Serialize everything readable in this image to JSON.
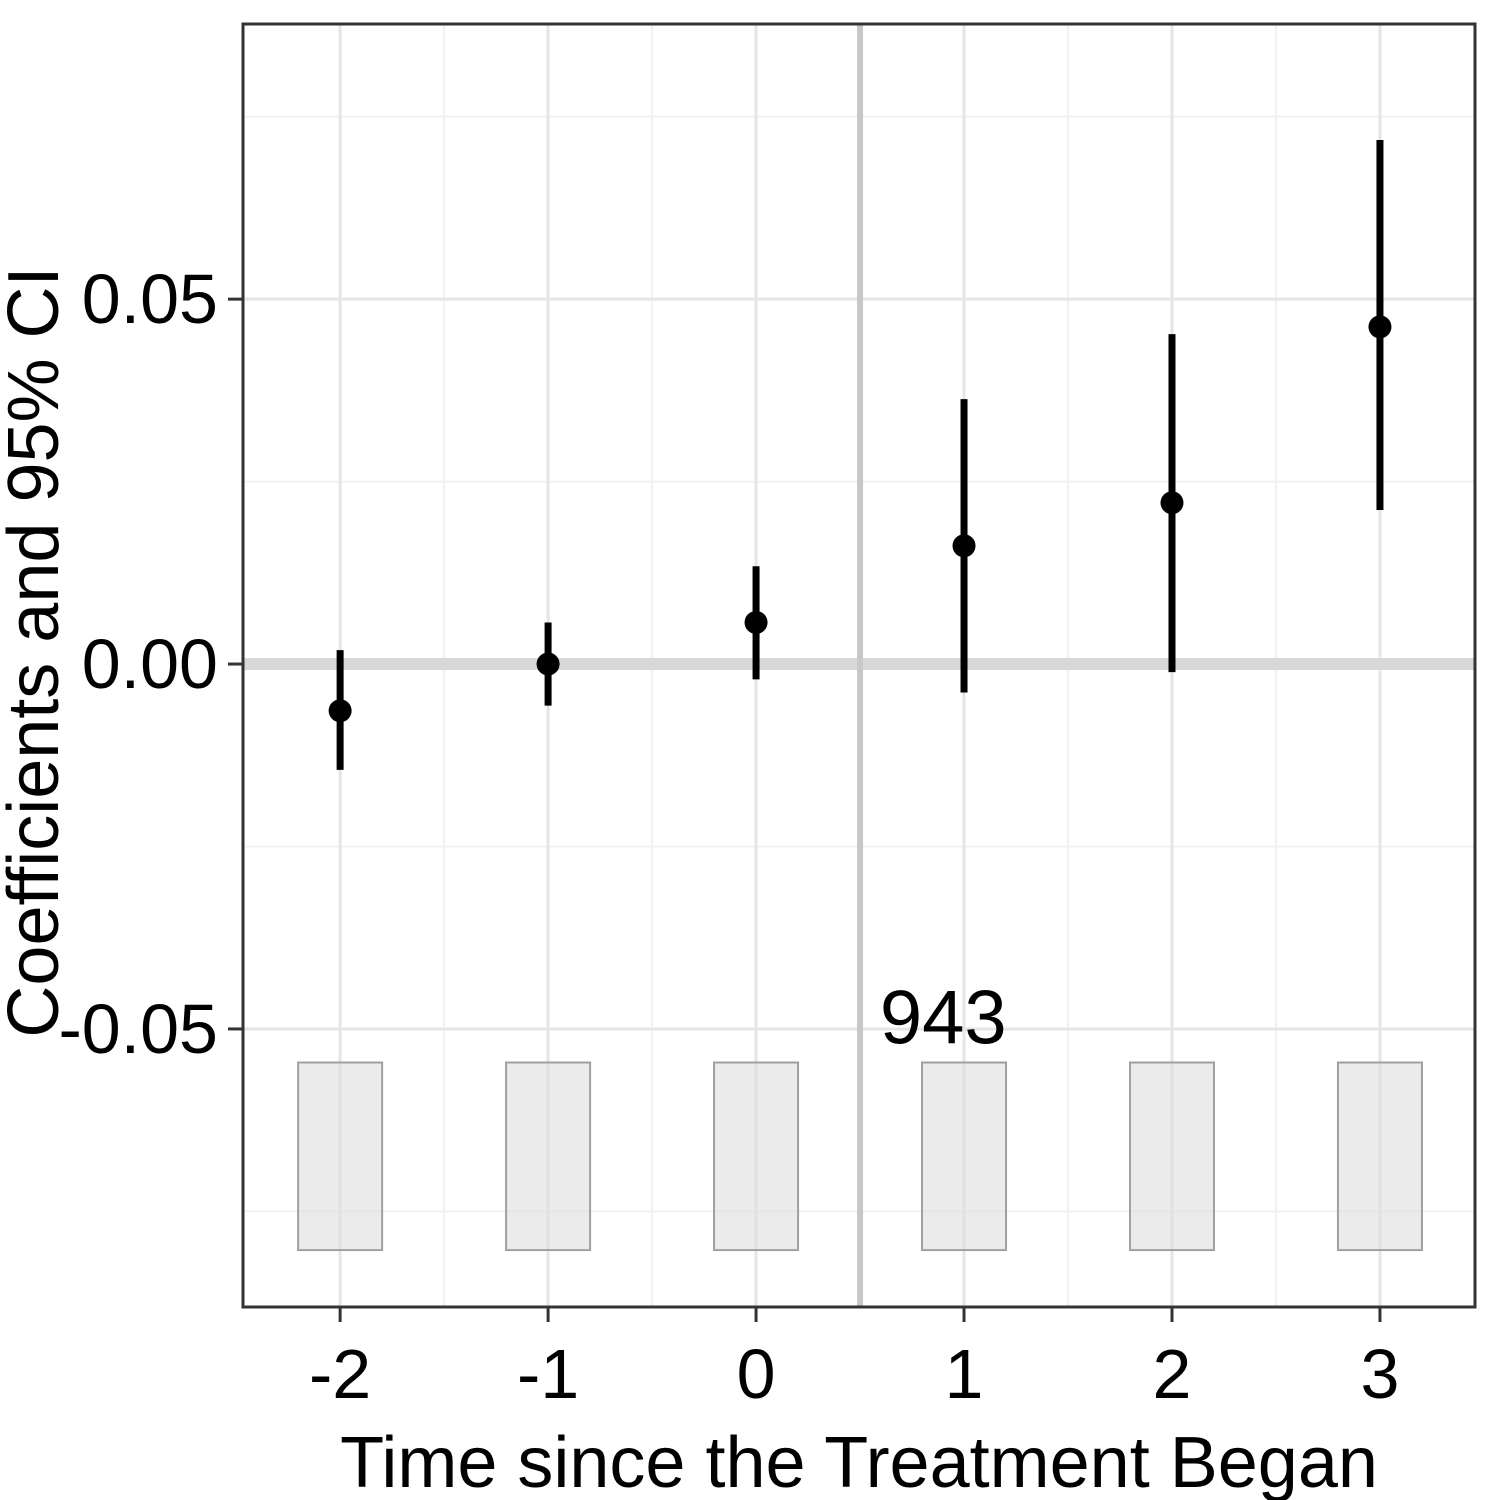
{
  "chart_data": {
    "type": "scatter",
    "title": "",
    "xlabel": "Time since the Treatment Began",
    "ylabel": "Coefficients and 95% CI",
    "x": [
      -2,
      -1,
      0,
      1,
      2,
      3
    ],
    "series": [
      {
        "name": "estimate",
        "values": [
          -0.0064,
          0.0,
          0.0057,
          0.0162,
          0.0221,
          0.0462
        ]
      },
      {
        "name": "ci_low",
        "values": [
          -0.0145,
          -0.0057,
          -0.0021,
          -0.0039,
          -0.0011,
          0.0211
        ]
      },
      {
        "name": "ci_high",
        "values": [
          0.0019,
          0.0057,
          0.0134,
          0.0363,
          0.0452,
          0.0718
        ]
      }
    ],
    "x_ticks": {
      "values": [
        -2,
        -1,
        0,
        1,
        2,
        3
      ],
      "labels": [
        "-2",
        "-1",
        "0",
        "1",
        "2",
        "3"
      ]
    },
    "y_ticks": {
      "values": [
        0.05,
        0.0,
        -0.05
      ],
      "labels": [
        "0.05",
        "0.00",
        "-0.05"
      ]
    },
    "x_minor": [
      -1.5,
      -0.5,
      0.5,
      1.5,
      2.5
    ],
    "y_minor": [
      0.075,
      0.025,
      -0.025,
      -0.075
    ],
    "x_domain": [
      -2.467,
      3.457
    ],
    "y_domain": [
      -0.0881,
      0.0877
    ],
    "grid": "on",
    "legend": "none",
    "reference_lines": {
      "h_zero": 0,
      "v_treatment": 0.5
    },
    "annotation": {
      "text": "943",
      "x": 0.9,
      "y": -0.0485
    },
    "rug_bars": {
      "x": [
        -2,
        -1,
        0,
        1,
        2,
        3
      ],
      "top": -0.0546,
      "bottom": -0.0803,
      "width": 0.404
    },
    "colors": {
      "point": "#000000",
      "errorbar": "#000000",
      "grid_major": "#E5E5E5",
      "grid_minor": "#F1F1F1",
      "zero_line": "#D8D8D8",
      "treatment_line": "#C7C7C7",
      "bar_fill": "#DEDEDE",
      "bar_border": "#A0A0A0",
      "panel_border": "#333333",
      "tick_mark": "#333333",
      "text": "#000000",
      "background": "#FFFFFF"
    }
  }
}
